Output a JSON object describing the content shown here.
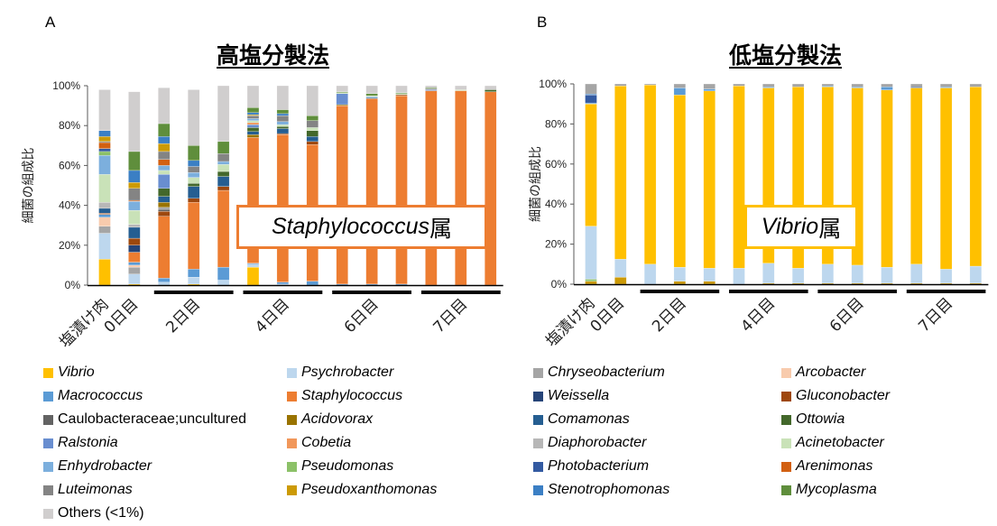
{
  "panels": {
    "a": {
      "letter": "A",
      "title": "高塩分製法",
      "annotation": {
        "italic": "Staphylococcus",
        "suffix": " 属"
      }
    },
    "b": {
      "letter": "B",
      "title": "低塩分製法",
      "annotation": {
        "italic": "Vibrio",
        "suffix": "属"
      }
    }
  },
  "colors": {
    "Vibrio": "#FFC000",
    "Psychrobacter": "#BDD7EE",
    "Chryseobacterium": "#A5A5A5",
    "Arcobacter": "#F8CBAD",
    "Macrococcus": "#5B9BD5",
    "Staphylococcus": "#ED7D31",
    "Weissella": "#264478",
    "Gluconobacter": "#9E480E",
    "Caulobacteraceae;uncultured": "#636363",
    "Acidovorax": "#997300",
    "Comamonas": "#255E91",
    "Ottowia": "#43682B",
    "Ralstonia": "#698ED0",
    "Cobetia": "#F1975A",
    "Diaphorobacter": "#B7B7B7",
    "Acinetobacter": "#C9E2B8",
    "Enhydrobacter": "#7CAFDD",
    "Pseudomonas": "#8CC168",
    "Photobacterium": "#335AA1",
    "Arenimonas": "#D26012",
    "Luteimonas": "#848484",
    "Pseudoxanthomonas": "#CC9A06",
    "Stenotrophomonas": "#3B7FC4",
    "Mycoplasma": "#5F8E3C",
    "Others (<1%)": "#D0CECE"
  },
  "legend": [
    {
      "label": "Vibrio",
      "italic": true
    },
    {
      "label": "Psychrobacter",
      "italic": true
    },
    {
      "label": "Chryseobacterium",
      "italic": true
    },
    {
      "label": "Arcobacter",
      "italic": true
    },
    {
      "label": "Macrococcus",
      "italic": true
    },
    {
      "label": "Staphylococcus",
      "italic": true
    },
    {
      "label": "Weissella",
      "italic": true
    },
    {
      "label": "Gluconobacter",
      "italic": true
    },
    {
      "label": "Caulobacteraceae;uncultured",
      "italic": false
    },
    {
      "label": "Acidovorax",
      "italic": true
    },
    {
      "label": "Comamonas",
      "italic": true
    },
    {
      "label": "Ottowia",
      "italic": true
    },
    {
      "label": "Ralstonia",
      "italic": true
    },
    {
      "label": "Cobetia",
      "italic": true
    },
    {
      "label": "Diaphorobacter",
      "italic": true
    },
    {
      "label": "Acinetobacter",
      "italic": true
    },
    {
      "label": "Enhydrobacter",
      "italic": true
    },
    {
      "label": "Pseudomonas",
      "italic": true
    },
    {
      "label": "Photobacterium",
      "italic": true
    },
    {
      "label": "Arenimonas",
      "italic": true
    },
    {
      "label": "Luteimonas",
      "italic": true
    },
    {
      "label": "Pseudoxanthomonas",
      "italic": true
    },
    {
      "label": "Stenotrophomonas",
      "italic": true
    },
    {
      "label": "Mycoplasma",
      "italic": true
    },
    {
      "label": "Others (<1%)",
      "italic": false
    }
  ],
  "chart_data": [
    {
      "type": "bar",
      "stacked": true,
      "title": "高塩分製法",
      "xlabel": "",
      "ylabel": "細菌の組成比",
      "ylim": [
        0,
        100
      ],
      "yticks": [
        "0%",
        "20%",
        "40%",
        "60%",
        "80%",
        "100%"
      ],
      "grid": false,
      "category_groups": [
        {
          "label": "塩漬け肉",
          "bars": 1,
          "underline": false
        },
        {
          "label": "0日目",
          "bars": 1,
          "underline": false
        },
        {
          "label": "2日目",
          "bars": 3,
          "underline": true
        },
        {
          "label": "4日目",
          "bars": 3,
          "underline": true
        },
        {
          "label": "6日目",
          "bars": 3,
          "underline": true
        },
        {
          "label": "7日目",
          "bars": 3,
          "underline": true
        }
      ],
      "bars": [
        [
          [
            "Vibrio",
            13
          ],
          [
            "Psychrobacter",
            13
          ],
          [
            "Chryseobacterium",
            3.5
          ],
          [
            "Arcobacter",
            4.5
          ],
          [
            "Macrococcus",
            1.5
          ],
          [
            "Arenimonas",
            0.5
          ],
          [
            "Comamonas",
            2.5
          ],
          [
            "Diaphorobacter",
            3
          ],
          [
            "Acinetobacter",
            14
          ],
          [
            "Enhydrobacter",
            9.5
          ],
          [
            "Pseudomonas",
            2
          ],
          [
            "Photobacterium",
            1.5
          ],
          [
            "Arenimonas",
            3
          ],
          [
            "Luteimonas",
            0.5
          ],
          [
            "Pseudoxanthomonas",
            2.5
          ],
          [
            "Stenotrophomonas",
            3
          ],
          [
            "Others (<1%)",
            20.5
          ]
        ],
        [
          [
            "Vibrio",
            0.5
          ],
          [
            "Psychrobacter",
            5
          ],
          [
            "Chryseobacterium",
            3.5
          ],
          [
            "Arcobacter",
            1
          ],
          [
            "Macrococcus",
            1.5
          ],
          [
            "Staphylococcus",
            5
          ],
          [
            "Weissella",
            3.5
          ],
          [
            "Gluconobacter",
            3.5
          ],
          [
            "Comamonas",
            5.5
          ],
          [
            "Diaphorobacter",
            1.5
          ],
          [
            "Acinetobacter",
            7
          ],
          [
            "Enhydrobacter",
            4.5
          ],
          [
            "Arenimonas",
            0.5
          ],
          [
            "Luteimonas",
            6
          ],
          [
            "Pseudoxanthomonas",
            3
          ],
          [
            "Stenotrophomonas",
            6
          ],
          [
            "Mycoplasma",
            9.5
          ],
          [
            "Others (<1%)",
            30
          ]
        ],
        [
          [
            "Psychrobacter",
            1.5
          ],
          [
            "Macrococcus",
            2
          ],
          [
            "Staphylococcus",
            31
          ],
          [
            "Gluconobacter",
            2.5
          ],
          [
            "Caulobacteraceae;uncultured",
            1
          ],
          [
            "Chryseobacterium",
            1
          ],
          [
            "Acidovorax",
            2.5
          ],
          [
            "Comamonas",
            3
          ],
          [
            "Ottowia",
            4
          ],
          [
            "Ralstonia",
            7
          ],
          [
            "Acinetobacter",
            2
          ],
          [
            "Enhydrobacter",
            2.5
          ],
          [
            "Arenimonas",
            3
          ],
          [
            "Luteimonas",
            4
          ],
          [
            "Pseudoxanthomonas",
            4
          ],
          [
            "Stenotrophomonas",
            3.5
          ],
          [
            "Mycoplasma",
            6.5
          ],
          [
            "Others (<1%)",
            18
          ]
        ],
        [
          [
            "Vibrio",
            0.5
          ],
          [
            "Psychrobacter",
            3.5
          ],
          [
            "Macrococcus",
            4
          ],
          [
            "Staphylococcus",
            33.5
          ],
          [
            "Gluconobacter",
            2
          ],
          [
            "Comamonas",
            6
          ],
          [
            "Ottowia",
            1.5
          ],
          [
            "Acinetobacter",
            3
          ],
          [
            "Enhydrobacter",
            2.5
          ],
          [
            "Luteimonas",
            3
          ],
          [
            "Stenotrophomonas",
            3
          ],
          [
            "Mycoplasma",
            7.5
          ],
          [
            "Others (<1%)",
            28
          ]
        ],
        [
          [
            "Psychrobacter",
            2.5
          ],
          [
            "Macrococcus",
            6.5
          ],
          [
            "Staphylococcus",
            38.5
          ],
          [
            "Gluconobacter",
            2
          ],
          [
            "Comamonas",
            5
          ],
          [
            "Ottowia",
            2.5
          ],
          [
            "Acinetobacter",
            3.5
          ],
          [
            "Enhydrobacter",
            1.5
          ],
          [
            "Luteimonas",
            4
          ],
          [
            "Mycoplasma",
            6
          ],
          [
            "Others (<1%)",
            28
          ]
        ],
        [
          [
            "Vibrio",
            9
          ],
          [
            "Psychrobacter",
            1.5
          ],
          [
            "Macrococcus",
            0.5
          ],
          [
            "Staphylococcus",
            63
          ],
          [
            "Acidovorax",
            1.5
          ],
          [
            "Comamonas",
            1.5
          ],
          [
            "Ottowia",
            2
          ],
          [
            "Ralstonia",
            1.5
          ],
          [
            "Cobetia",
            1
          ],
          [
            "Acinetobacter",
            1
          ],
          [
            "Enhydrobacter",
            1
          ],
          [
            "Luteimonas",
            1.5
          ],
          [
            "Pseudoxanthomonas",
            0.5
          ],
          [
            "Stenotrophomonas",
            1
          ],
          [
            "Mycoplasma",
            2.5
          ],
          [
            "Others (<1%)",
            11
          ]
        ],
        [
          [
            "Psychrobacter",
            0.5
          ],
          [
            "Macrococcus",
            1
          ],
          [
            "Staphylococcus",
            74
          ],
          [
            "Gluconobacter",
            0.5
          ],
          [
            "Comamonas",
            2.5
          ],
          [
            "Ottowia",
            1
          ],
          [
            "Acinetobacter",
            1
          ],
          [
            "Enhydrobacter",
            1.5
          ],
          [
            "Luteimonas",
            3
          ],
          [
            "Stenotrophomonas",
            1
          ],
          [
            "Mycoplasma",
            2
          ],
          [
            "Others (<1%)",
            12
          ]
        ],
        [
          [
            "Macrococcus",
            2
          ],
          [
            "Staphylococcus",
            68.5
          ],
          [
            "Gluconobacter",
            1.5
          ],
          [
            "Comamonas",
            2.5
          ],
          [
            "Ottowia",
            3
          ],
          [
            "Acinetobacter",
            1.5
          ],
          [
            "Luteimonas",
            3.5
          ],
          [
            "Mycoplasma",
            2.5
          ],
          [
            "Others (<1%)",
            15
          ]
        ],
        [
          [
            "Macrococcus",
            0.5
          ],
          [
            "Staphylococcus",
            89.5
          ],
          [
            "Acidovorax",
            0.5
          ],
          [
            "Ralstonia",
            5.5
          ],
          [
            "Acinetobacter",
            0.5
          ],
          [
            "Mycoplasma",
            0.5
          ],
          [
            "Others (<1%)",
            3
          ]
        ],
        [
          [
            "Macrococcus",
            0.5
          ],
          [
            "Staphylococcus",
            93
          ],
          [
            "Comamonas",
            0.5
          ],
          [
            "Enhydrobacter",
            0.5
          ],
          [
            "Acinetobacter",
            0.5
          ],
          [
            "Mycoplasma",
            1
          ],
          [
            "Others (<1%)",
            4
          ]
        ],
        [
          [
            "Macrococcus",
            0.5
          ],
          [
            "Staphylococcus",
            94.5
          ],
          [
            "Gluconobacter",
            0.5
          ],
          [
            "Acinetobacter",
            0.5
          ],
          [
            "Mycoplasma",
            0.5
          ],
          [
            "Others (<1%)",
            3.5
          ]
        ],
        [
          [
            "Staphylococcus",
            97.5
          ],
          [
            "Ralstonia",
            0.5
          ],
          [
            "Luteimonas",
            0.5
          ],
          [
            "Mycoplasma",
            0.5
          ],
          [
            "Others (<1%)",
            1
          ]
        ],
        [
          [
            "Staphylococcus",
            97.5
          ],
          [
            "Acinetobacter",
            0.5
          ],
          [
            "Others (<1%)",
            2
          ]
        ],
        [
          [
            "Staphylococcus",
            97
          ],
          [
            "Ottowia",
            1
          ],
          [
            "Others (<1%)",
            2
          ]
        ]
      ]
    },
    {
      "type": "bar",
      "stacked": true,
      "title": "低塩分製法",
      "xlabel": "",
      "ylabel": "細菌の組成比",
      "ylim": [
        0,
        100
      ],
      "yticks": [
        "0%",
        "20%",
        "40%",
        "60%",
        "80%",
        "100%"
      ],
      "grid": false,
      "category_groups": [
        {
          "label": "塩漬け肉",
          "bars": 1,
          "underline": false
        },
        {
          "label": "0日目",
          "bars": 1,
          "underline": false
        },
        {
          "label": "2日目",
          "bars": 3,
          "underline": true
        },
        {
          "label": "4日目",
          "bars": 3,
          "underline": true
        },
        {
          "label": "6日目",
          "bars": 3,
          "underline": true
        },
        {
          "label": "7日目",
          "bars": 3,
          "underline": true
        }
      ],
      "bars": [
        [
          [
            "Pseudoxanthomonas",
            1.5
          ],
          [
            "Pseudomonas",
            1
          ],
          [
            "Psychrobacter",
            26.5
          ],
          [
            "Vibrio",
            61
          ],
          [
            "Macrococcus",
            0.5
          ],
          [
            "Photobacterium",
            4
          ],
          [
            "Stenotrophomonas",
            0.5
          ],
          [
            "Chryseobacterium",
            5
          ]
        ],
        [
          [
            "Pseudoxanthomonas",
            3.5
          ],
          [
            "Psychrobacter",
            9
          ],
          [
            "Vibrio",
            86.5
          ],
          [
            "Chryseobacterium",
            1
          ]
        ],
        [
          [
            "Psychrobacter",
            10
          ],
          [
            "Vibrio",
            89.5
          ],
          [
            "Chryseobacterium",
            0.5
          ]
        ],
        [
          [
            "Pseudoxanthomonas",
            1.5
          ],
          [
            "Psychrobacter",
            7
          ],
          [
            "Vibrio",
            86
          ],
          [
            "Macrococcus",
            3.5
          ],
          [
            "Chryseobacterium",
            2
          ]
        ],
        [
          [
            "Pseudoxanthomonas",
            1.5
          ],
          [
            "Psychrobacter",
            6.5
          ],
          [
            "Vibrio",
            88.5
          ],
          [
            "Macrococcus",
            1
          ],
          [
            "Chryseobacterium",
            2.5
          ]
        ],
        [
          [
            "Psychrobacter",
            8
          ],
          [
            "Vibrio",
            91
          ],
          [
            "Chryseobacterium",
            1
          ]
        ],
        [
          [
            "Pseudoxanthomonas",
            0.5
          ],
          [
            "Psychrobacter",
            10
          ],
          [
            "Vibrio",
            87.5
          ],
          [
            "Macrococcus",
            0.5
          ],
          [
            "Chryseobacterium",
            1.5
          ]
        ],
        [
          [
            "Pseudoxanthomonas",
            0.5
          ],
          [
            "Psychrobacter",
            7.5
          ],
          [
            "Vibrio",
            90.5
          ],
          [
            "Chryseobacterium",
            1.5
          ]
        ],
        [
          [
            "Pseudoxanthomonas",
            0.5
          ],
          [
            "Psychrobacter",
            9.5
          ],
          [
            "Vibrio",
            88.5
          ],
          [
            "Macrococcus",
            0.5
          ],
          [
            "Chryseobacterium",
            1
          ]
        ],
        [
          [
            "Pseudoxanthomonas",
            0.5
          ],
          [
            "Psychrobacter",
            9
          ],
          [
            "Vibrio",
            88.5
          ],
          [
            "Macrococcus",
            0.5
          ],
          [
            "Chryseobacterium",
            1.5
          ]
        ],
        [
          [
            "Pseudoxanthomonas",
            0.5
          ],
          [
            "Psychrobacter",
            8
          ],
          [
            "Vibrio",
            88.5
          ],
          [
            "Macrococcus",
            1.5
          ],
          [
            "Chryseobacterium",
            1.5
          ]
        ],
        [
          [
            "Pseudoxanthomonas",
            0.5
          ],
          [
            "Psychrobacter",
            9.5
          ],
          [
            "Vibrio",
            88
          ],
          [
            "Photobacterium",
            0.5
          ],
          [
            "Chryseobacterium",
            1.5
          ]
        ],
        [
          [
            "Pseudoxanthomonas",
            0.5
          ],
          [
            "Psychrobacter",
            7
          ],
          [
            "Vibrio",
            90.5
          ],
          [
            "Macrococcus",
            0.5
          ],
          [
            "Chryseobacterium",
            1.5
          ]
        ],
        [
          [
            "Pseudoxanthomonas",
            0.5
          ],
          [
            "Psychrobacter",
            8.5
          ],
          [
            "Vibrio",
            89.5
          ],
          [
            "Chryseobacterium",
            1.5
          ]
        ]
      ]
    }
  ]
}
